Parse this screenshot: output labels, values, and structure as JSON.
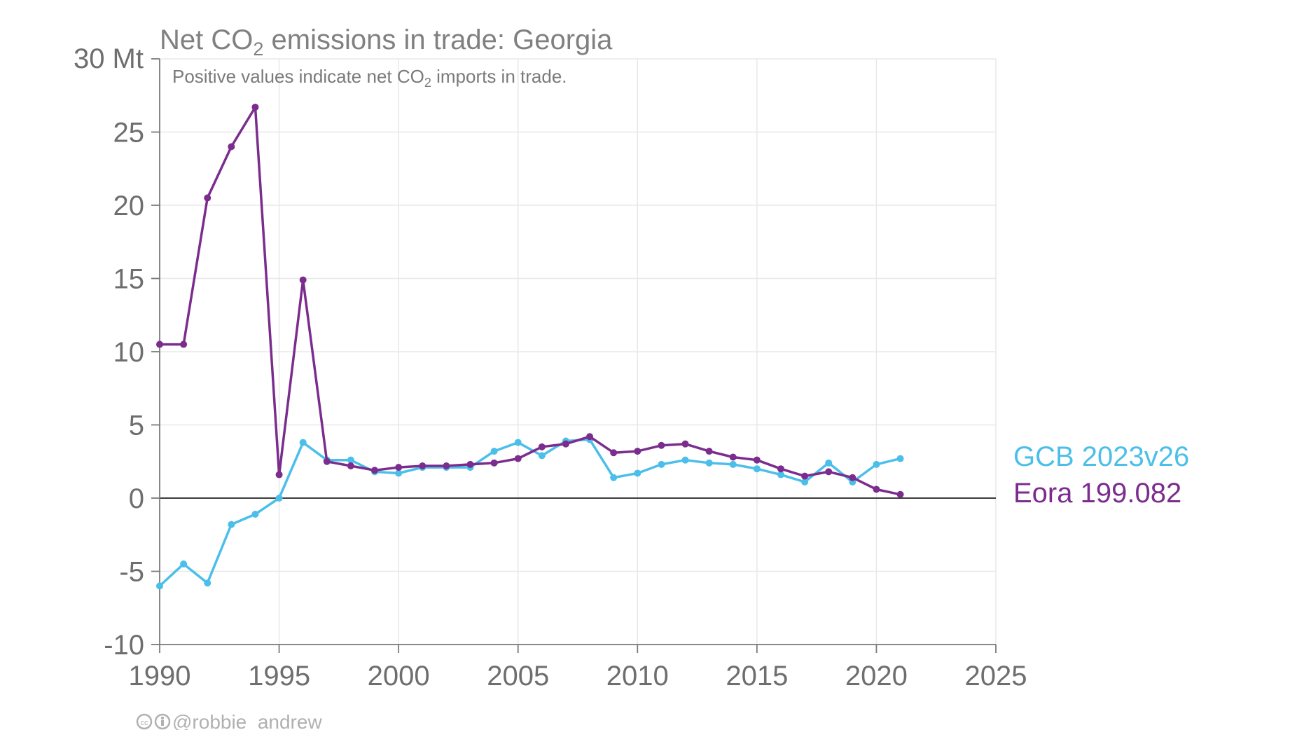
{
  "chart_data": {
    "type": "line",
    "title_main": "Net CO",
    "title_sub2": "2",
    "title_rest": " emissions in trade: Georgia",
    "subtitle_main": "Positive values indicate net CO",
    "subtitle_sub2": "2",
    "subtitle_rest": " imports in trade.",
    "y_unit_label": "30 Mt",
    "xlim": [
      1990,
      2025
    ],
    "ylim": [
      -10,
      30
    ],
    "x_ticks": [
      1990,
      1995,
      2000,
      2005,
      2010,
      2015,
      2020,
      2025
    ],
    "y_ticks": [
      -10,
      -5,
      0,
      5,
      10,
      15,
      20,
      25
    ],
    "grid": true,
    "legend_placement": "right",
    "series": [
      {
        "name": "GCB 2023v26",
        "color": "#4bbfea",
        "x": [
          1990,
          1991,
          1992,
          1993,
          1994,
          1995,
          1996,
          1997,
          1998,
          1999,
          2000,
          2001,
          2002,
          2003,
          2004,
          2005,
          2006,
          2007,
          2008,
          2009,
          2010,
          2011,
          2012,
          2013,
          2014,
          2015,
          2016,
          2017,
          2018,
          2019,
          2020,
          2021
        ],
        "values": [
          -6.0,
          -4.5,
          -5.8,
          -1.8,
          -1.1,
          0.0,
          3.8,
          2.6,
          2.6,
          1.8,
          1.7,
          2.1,
          2.1,
          2.1,
          3.2,
          3.8,
          2.9,
          3.9,
          4.0,
          1.4,
          1.7,
          2.3,
          2.6,
          2.4,
          2.3,
          2.0,
          1.6,
          1.1,
          2.4,
          1.1,
          2.3,
          2.7
        ]
      },
      {
        "name": "Eora 199.082",
        "color": "#7b2d8e",
        "x": [
          1990,
          1991,
          1992,
          1993,
          1994,
          1995,
          1996,
          1997,
          1998,
          1999,
          2000,
          2001,
          2002,
          2003,
          2004,
          2005,
          2006,
          2007,
          2008,
          2009,
          2010,
          2011,
          2012,
          2013,
          2014,
          2015,
          2016,
          2017,
          2018,
          2019,
          2020,
          2021
        ],
        "values": [
          10.5,
          10.5,
          20.5,
          24.0,
          26.7,
          1.6,
          14.9,
          2.5,
          2.2,
          1.9,
          2.1,
          2.2,
          2.2,
          2.3,
          2.4,
          2.7,
          3.5,
          3.7,
          4.2,
          3.1,
          3.2,
          3.6,
          3.7,
          3.2,
          2.8,
          2.6,
          2.0,
          1.5,
          1.8,
          1.4,
          0.6,
          0.25
        ]
      }
    ]
  },
  "credit": {
    "cc_icon": "cc-by-icon",
    "handle": "@robbie_andrew"
  }
}
